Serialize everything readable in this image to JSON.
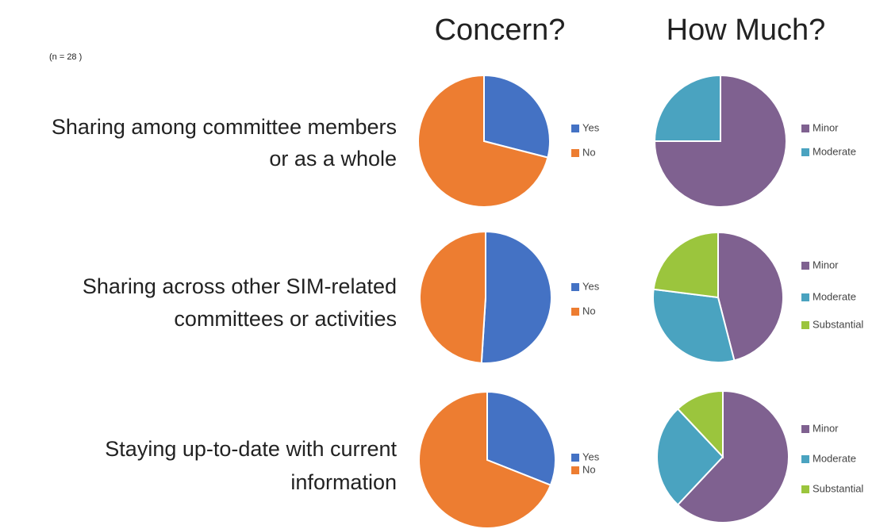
{
  "note": "(n = 28 )",
  "column_titles": [
    "Concern?",
    "How Much?"
  ],
  "row_labels": [
    [
      "Sharing among committee members",
      "or as a whole"
    ],
    [
      "Sharing across other SIM-related",
      "committees or activities"
    ],
    [
      "Staying up-to-date with current",
      "information"
    ]
  ],
  "chart_data": [
    {
      "type": "pie",
      "categories": [
        "Yes",
        "No"
      ],
      "values": [
        29,
        71
      ],
      "colors": [
        "#4472c4",
        "#ed7d31"
      ]
    },
    {
      "type": "pie",
      "categories": [
        "Minor",
        "Moderate"
      ],
      "values": [
        75,
        25
      ],
      "colors": [
        "#7f6190",
        "#4aa3c0"
      ]
    },
    {
      "type": "pie",
      "categories": [
        "Yes",
        "No"
      ],
      "values": [
        51,
        49
      ],
      "colors": [
        "#4472c4",
        "#ed7d31"
      ]
    },
    {
      "type": "pie",
      "categories": [
        "Minor",
        "Moderate",
        "Substantial"
      ],
      "values": [
        46,
        31,
        23
      ],
      "colors": [
        "#7f6190",
        "#4aa3c0",
        "#9bc53d"
      ]
    },
    {
      "type": "pie",
      "categories": [
        "Yes",
        "No"
      ],
      "values": [
        31,
        69
      ],
      "colors": [
        "#4472c4",
        "#ed7d31"
      ]
    },
    {
      "type": "pie",
      "categories": [
        "Minor",
        "Moderate",
        "Substantial"
      ],
      "values": [
        62,
        26,
        12
      ],
      "colors": [
        "#7f6190",
        "#4aa3c0",
        "#9bc53d"
      ]
    }
  ]
}
